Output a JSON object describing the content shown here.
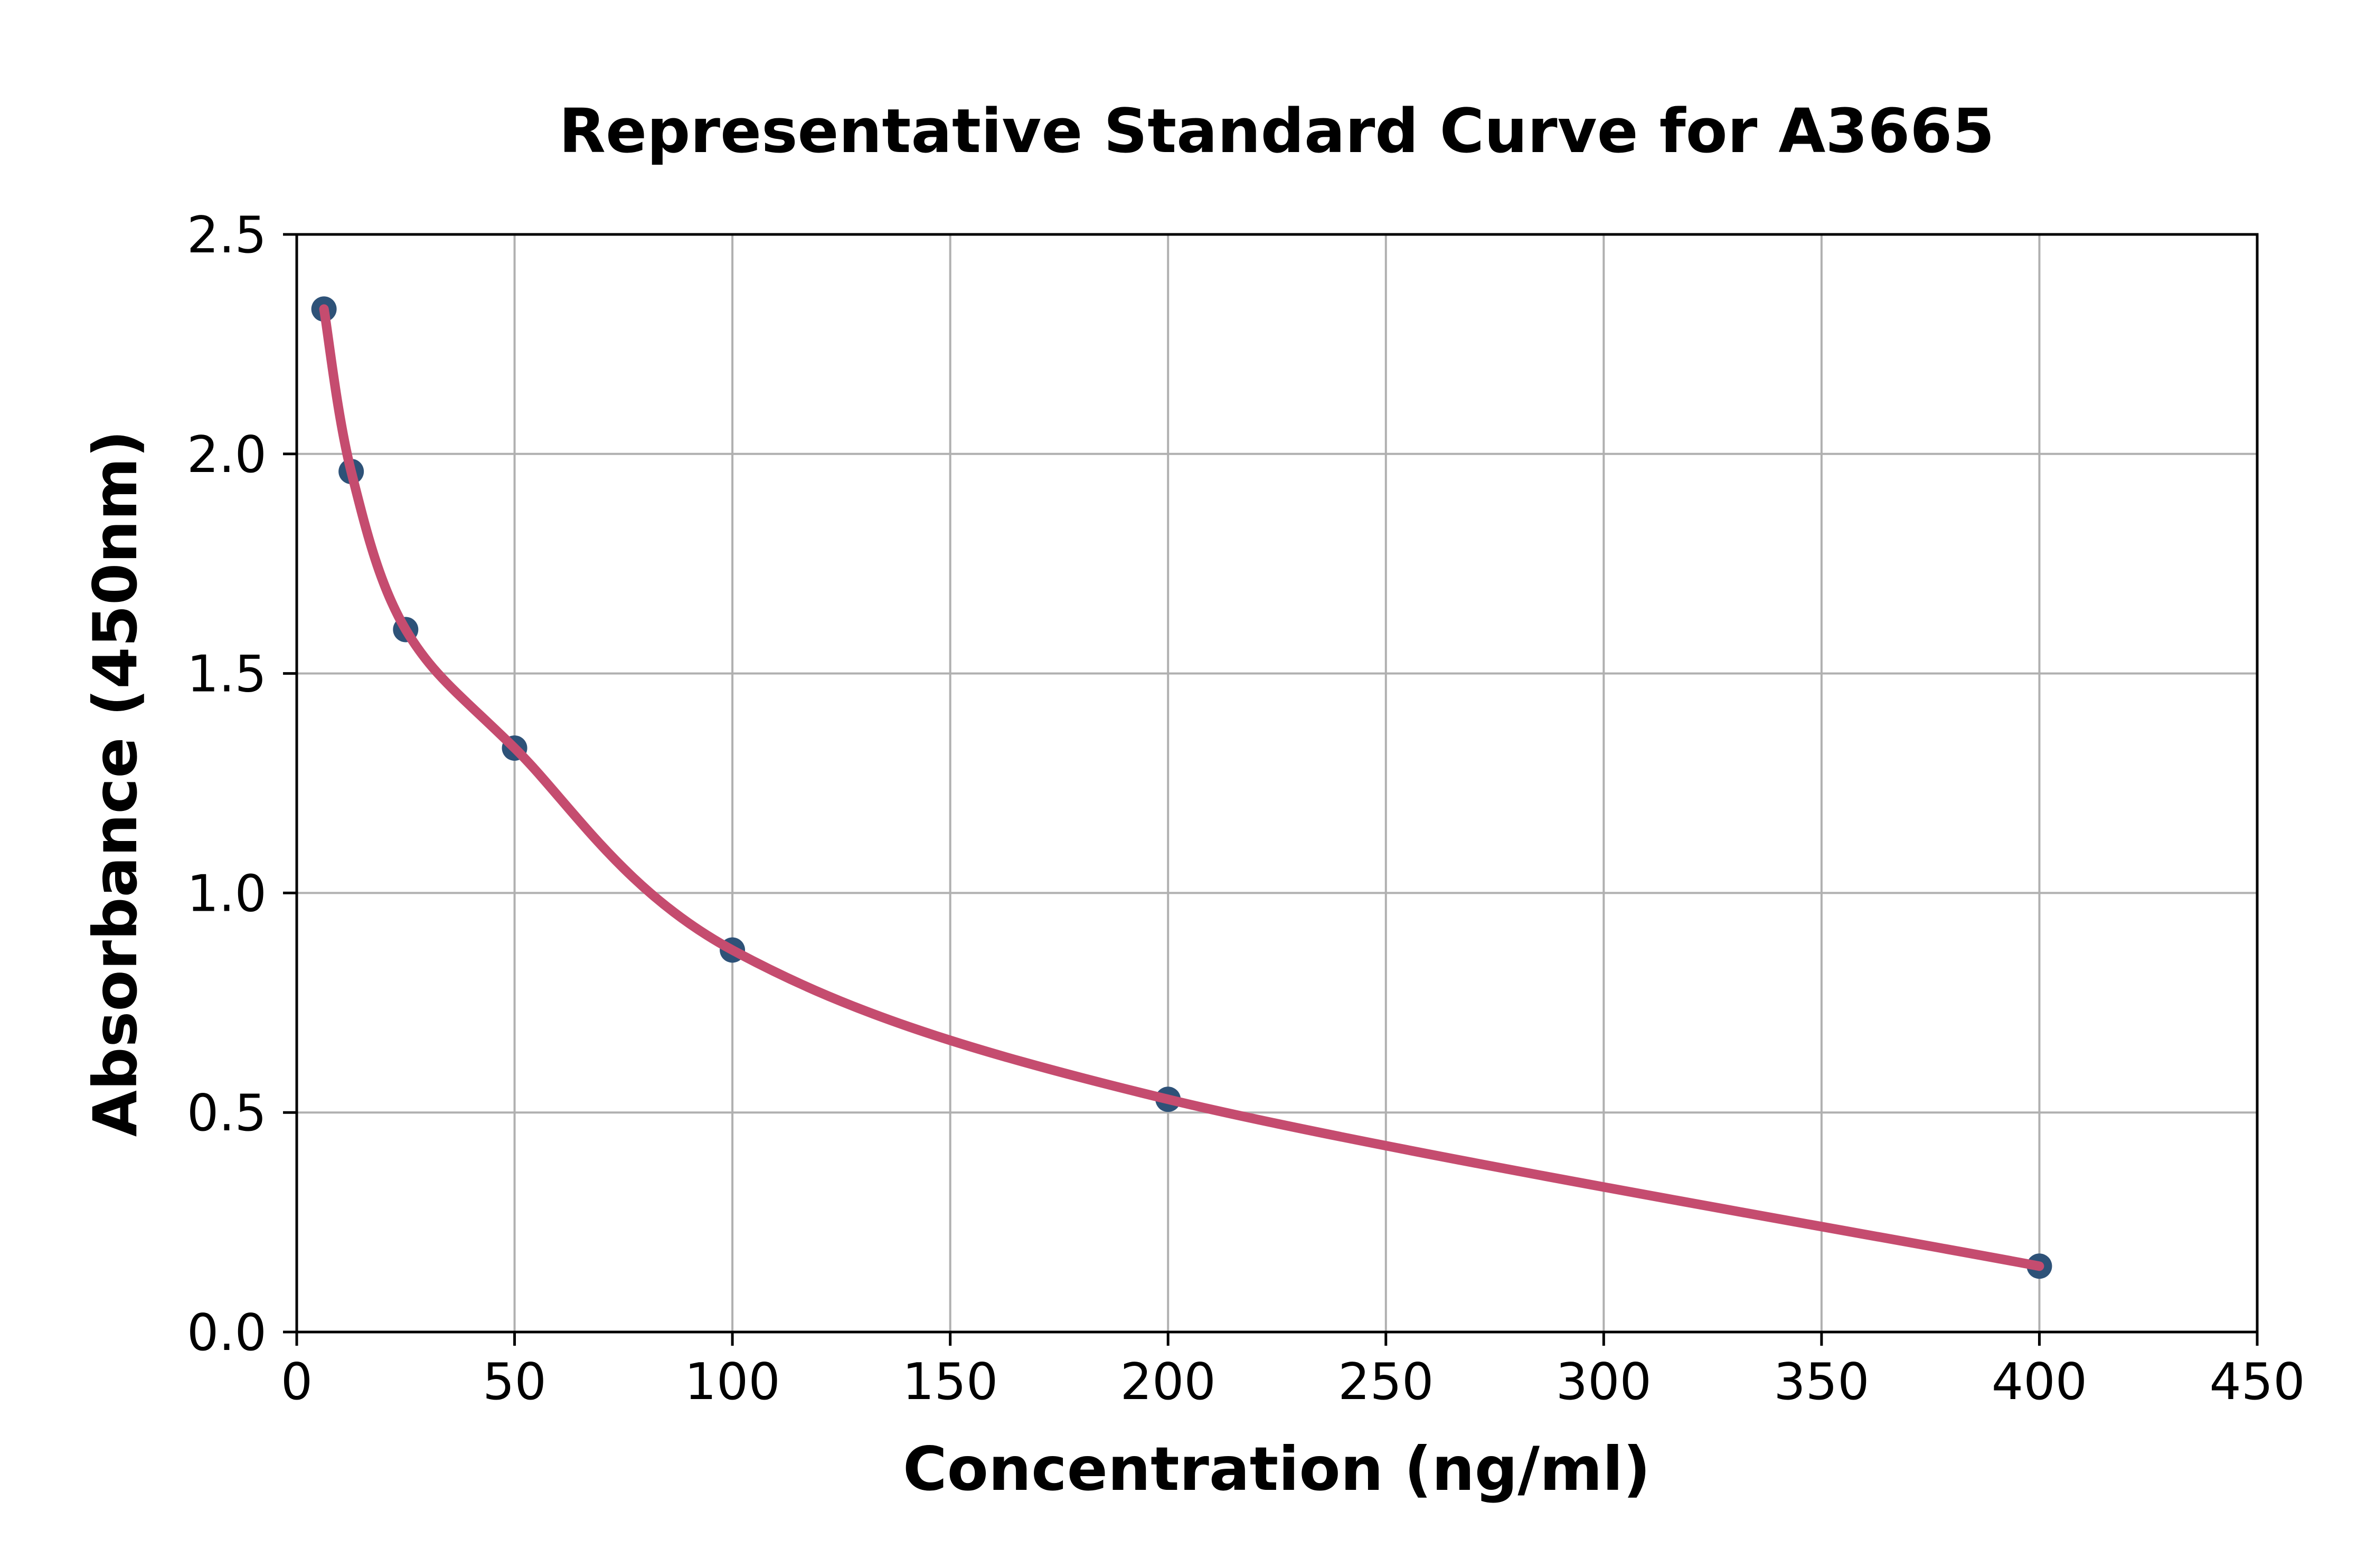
{
  "chart_data": {
    "type": "scatter",
    "title": "Representative Standard Curve for A3665",
    "xlabel": "Concentration (ng/ml)",
    "ylabel": "Absorbance (450nm)",
    "x": [
      6.25,
      12.5,
      25,
      50,
      100,
      200,
      400
    ],
    "y": [
      2.33,
      1.96,
      1.6,
      1.33,
      0.87,
      0.53,
      0.15
    ],
    "fit_curve_through_points": true,
    "xlim": [
      0,
      450
    ],
    "ylim": [
      0,
      2.5
    ],
    "x_ticks": [
      0,
      50,
      100,
      150,
      200,
      250,
      300,
      350,
      400,
      450
    ],
    "x_tick_labels": [
      "0",
      "50",
      "100",
      "150",
      "200",
      "250",
      "300",
      "350",
      "400",
      "450"
    ],
    "y_ticks": [
      0.0,
      0.5,
      1.0,
      1.5,
      2.0,
      2.5
    ],
    "y_tick_labels": [
      "0.0",
      "0.5",
      "1.0",
      "1.5",
      "2.0",
      "2.5"
    ],
    "grid": true,
    "legend": "none",
    "colors": {
      "marker": "#2E5278",
      "curve": "#C54C6F",
      "grid": "#B0B0B0",
      "spine": "#000000",
      "text": "#000000",
      "background": "#FFFFFF"
    }
  }
}
